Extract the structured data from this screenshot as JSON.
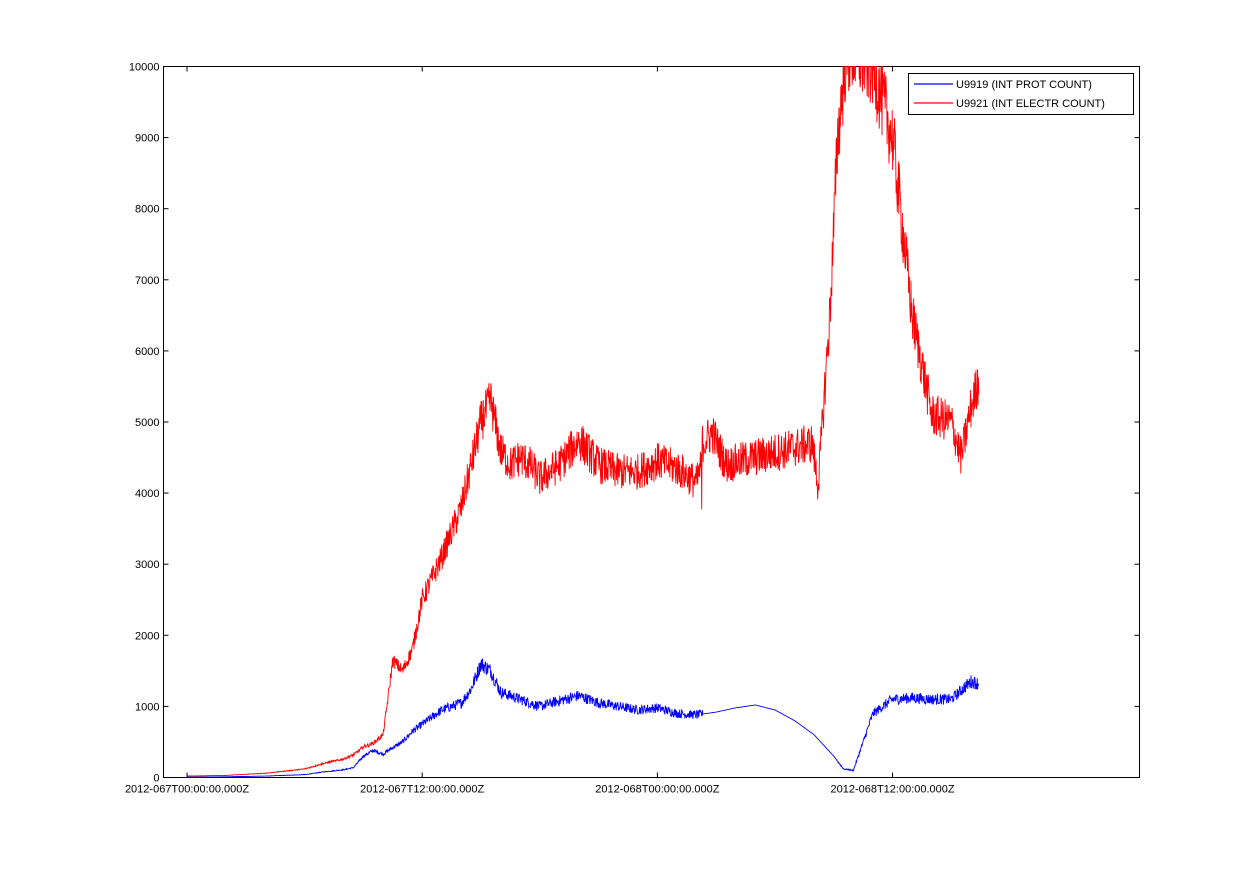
{
  "chart_data": {
    "type": "line",
    "xlabel": "",
    "ylabel": "",
    "x_ticks": [
      "2012-067T00:00:00.000Z",
      "2012-067T12:00:00.000Z",
      "2012-068T00:00:00.000Z",
      "2012-068T12:00:00.000Z"
    ],
    "x_unit": "hours since 2012-067T00:00:00.000Z",
    "xlim": [
      -1.2,
      48.6
    ],
    "ylim": [
      0,
      10000
    ],
    "y_ticks": [
      "0",
      "1000",
      "2000",
      "3000",
      "4000",
      "5000",
      "6000",
      "7000",
      "8000",
      "9000",
      "10000"
    ],
    "grid": false,
    "legend_position": "top-right",
    "series": [
      {
        "name": "U9919 (INT PROT COUNT)",
        "color": "#0000ff",
        "noise": 0.07,
        "x": [
          0,
          2,
          4,
          6,
          7,
          8,
          8.5,
          9,
          9.5,
          10,
          10.5,
          11,
          11.5,
          12,
          13,
          14,
          14.5,
          15,
          15.5,
          16,
          16.5,
          17,
          17.5,
          18,
          19,
          20,
          21,
          22,
          23,
          24,
          25,
          26,
          27,
          28,
          29,
          30,
          31,
          32,
          33,
          33.5,
          34,
          34.5,
          35,
          36,
          37,
          38,
          39,
          40,
          40.4
        ],
        "y": [
          5,
          10,
          20,
          40,
          80,
          110,
          140,
          300,
          380,
          330,
          420,
          500,
          650,
          750,
          950,
          1050,
          1250,
          1600,
          1500,
          1200,
          1150,
          1100,
          1050,
          1000,
          1080,
          1150,
          1050,
          1000,
          950,
          980,
          900,
          880,
          920,
          980,
          1020,
          950,
          800,
          600,
          300,
          120,
          100,
          500,
          900,
          1100,
          1120,
          1100,
          1100,
          1350,
          1320
        ]
      },
      {
        "name": "U9921 (INT ELECTR COUNT)",
        "color": "#ff0000",
        "noise": 0.06,
        "x": [
          0,
          2,
          4,
          6,
          7,
          8,
          8.5,
          9,
          9.5,
          10,
          10.2,
          10.5,
          11,
          11.5,
          12,
          13,
          14,
          14.5,
          15,
          15.5,
          16,
          16.5,
          17,
          17.5,
          18,
          19,
          20,
          21,
          22,
          23,
          24,
          25,
          26,
          26.25,
          26.26,
          26.27,
          26.28,
          26.3,
          26.8,
          27.5,
          31.9,
          32.2,
          32.8,
          33.2,
          33.6,
          33.9,
          34.5,
          35,
          36,
          37,
          38,
          39,
          39.5,
          40,
          40.4
        ],
        "y": [
          20,
          30,
          60,
          120,
          200,
          260,
          320,
          430,
          480,
          600,
          1000,
          1650,
          1500,
          1800,
          2500,
          3100,
          3800,
          4400,
          5000,
          5300,
          4600,
          4400,
          4500,
          4400,
          4200,
          4400,
          4750,
          4400,
          4300,
          4300,
          4450,
          4350,
          4150,
          4400,
          3850,
          4600,
          4650,
          4700,
          4850,
          4400,
          4700,
          4100,
          6500,
          9000,
          10100,
          10200,
          10100,
          10000,
          9000,
          6500,
          5100,
          5000,
          4500,
          5200,
          5600
        ]
      }
    ]
  }
}
